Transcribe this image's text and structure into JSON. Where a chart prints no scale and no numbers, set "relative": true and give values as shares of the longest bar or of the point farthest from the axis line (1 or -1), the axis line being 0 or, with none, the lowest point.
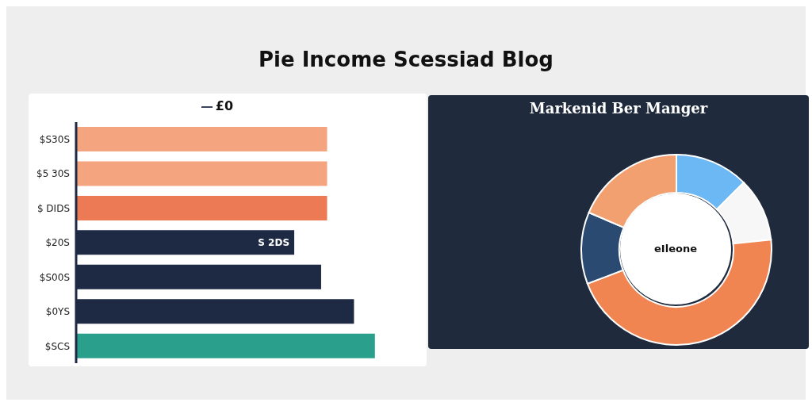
{
  "chart_data": [
    {
      "type": "bar",
      "orientation": "horizontal",
      "relative": true,
      "title": "Pie Income Scessiad Blog",
      "legend": "top",
      "categories": [
        "$S30S",
        "$5 30S",
        "$ DIDS",
        "$20S",
        "$S00S",
        "$0YS",
        "$SCS"
      ],
      "series": [
        {
          "name": "£0",
          "color": "#1e2a44",
          "colors": [
            "#f4a47e",
            "#f4a47e",
            "#ec7a54",
            "#1e2a44",
            "#1e2a44",
            "#1e2a44",
            "#2aa08c"
          ],
          "values": [
            0.84,
            0.84,
            0.84,
            0.73,
            0.82,
            0.93,
            1
          ]
        }
      ],
      "annotations": [
        {
          "text": "S 2DS",
          "y": "$20S"
        }
      ]
    },
    {
      "type": "donut",
      "title": "Markenid Ber Manger",
      "annotations": [
        "eIleone"
      ],
      "categories": [
        null,
        null,
        null,
        null,
        null
      ],
      "values": [
        12.5,
        10.8,
        45.9,
        12.2,
        18.6
      ],
      "colors": [
        "#6cb8f5",
        "#f7f7f7",
        "#f08552",
        "#2b4a72",
        "#f2a070"
      ]
    }
  ]
}
